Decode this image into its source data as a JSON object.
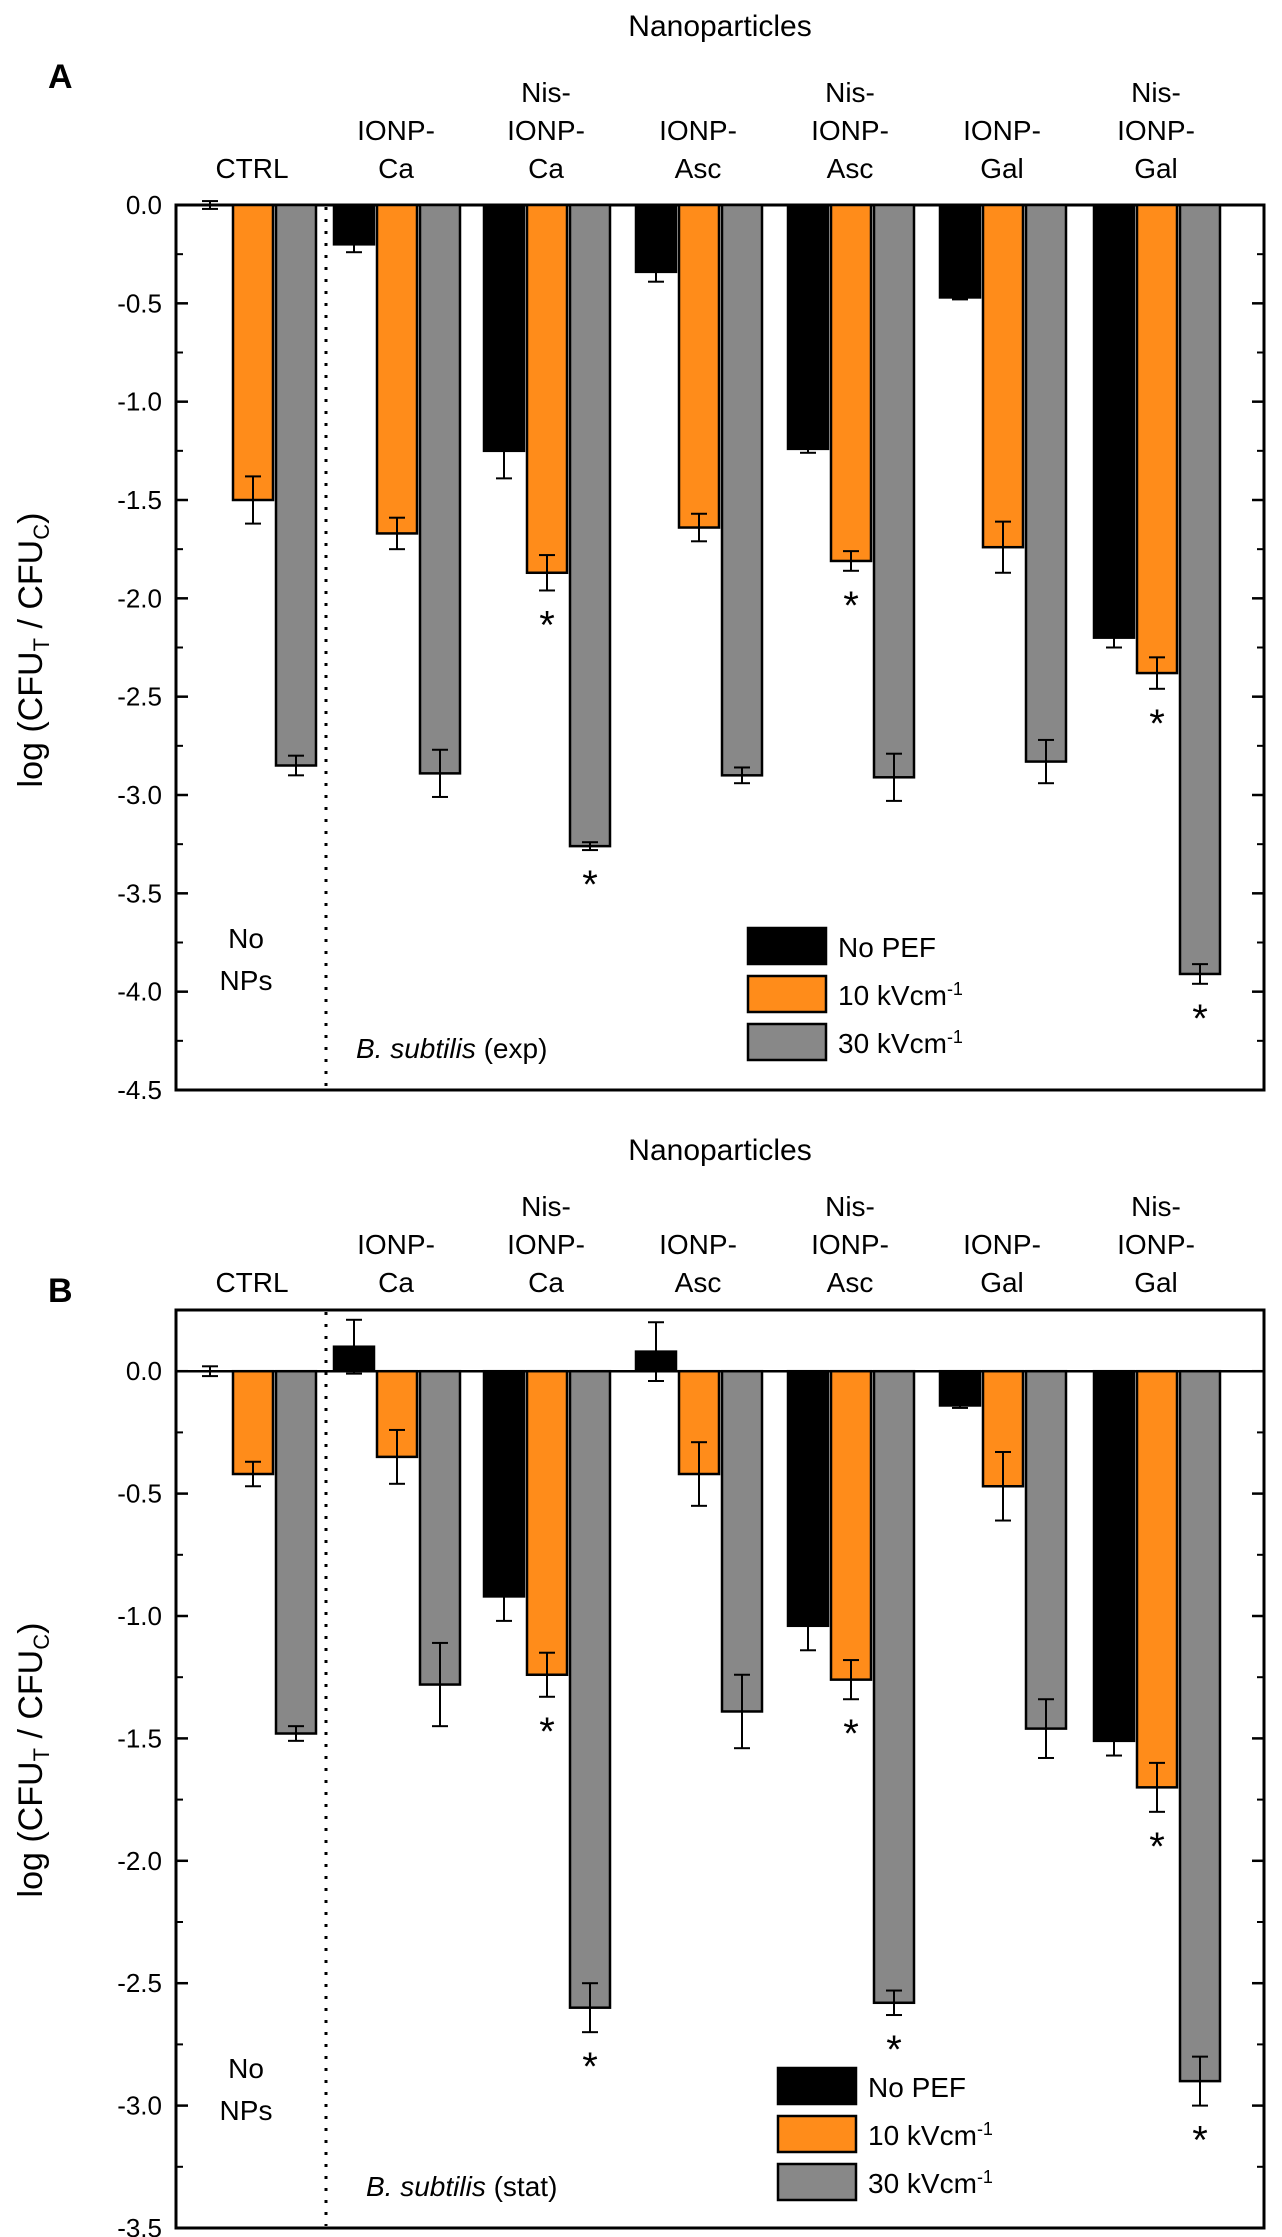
{
  "colors": {
    "no_pef": "#000000",
    "kv10": "#ff8c1a",
    "kv30": "#888888",
    "axis": "#000000"
  },
  "chart_data": [
    {
      "panel": "A",
      "type": "bar",
      "top_title": "Nanoparticles",
      "ylabel_main": "log (CFU",
      "ylabel_sub_t": "T",
      "ylabel_mid": " / CFU",
      "ylabel_sub_c": "C",
      "ylabel_close": ")",
      "ylim": [
        -4.5,
        0.0
      ],
      "ticks": [
        "0.0",
        "-0.5",
        "-1.0",
        "-1.5",
        "-2.0",
        "-2.5",
        "-3.0",
        "-3.5",
        "-4.0",
        "-4.5"
      ],
      "categories": [
        [
          "CTRL"
        ],
        [
          "IONP-",
          "Ca"
        ],
        [
          "Nis-",
          "IONP-",
          "Ca"
        ],
        [
          "IONP-",
          "Asc"
        ],
        [
          "Nis-",
          "IONP-",
          "Asc"
        ],
        [
          "IONP-",
          "Gal"
        ],
        [
          "Nis-",
          "IONP-",
          "Gal"
        ]
      ],
      "series": [
        {
          "name": "No PEF",
          "values": [
            0.0,
            -0.2,
            -1.25,
            -0.34,
            -1.24,
            -0.47,
            -2.2
          ],
          "errors": [
            0.02,
            0.04,
            0.14,
            0.05,
            0.02,
            0.01,
            0.05
          ],
          "stars": [
            false,
            false,
            false,
            false,
            false,
            false,
            false
          ]
        },
        {
          "name": "10 kVcm",
          "values": [
            -1.5,
            -1.67,
            -1.87,
            -1.64,
            -1.81,
            -1.74,
            -2.38
          ],
          "errors": [
            0.12,
            0.08,
            0.09,
            0.07,
            0.05,
            0.13,
            0.08
          ],
          "stars": [
            false,
            false,
            true,
            false,
            true,
            false,
            true
          ]
        },
        {
          "name": "30 kVcm",
          "values": [
            -2.85,
            -2.89,
            -3.26,
            -2.9,
            -2.91,
            -2.83,
            -3.91
          ],
          "errors": [
            0.05,
            0.12,
            0.02,
            0.04,
            0.12,
            0.11,
            0.05
          ],
          "stars": [
            false,
            false,
            true,
            false,
            false,
            false,
            true
          ]
        }
      ],
      "legend": [
        "No PEF",
        "10 kVcm",
        "30 kVcm"
      ],
      "legend_sup": "-1",
      "annotation_ctrl": [
        "No",
        "NPs"
      ],
      "species_italic": "B. subtilis",
      "species_phase": " (exp)",
      "star": "*"
    },
    {
      "panel": "B",
      "type": "bar",
      "top_title": "Nanoparticles",
      "ylabel_main": "log (CFU",
      "ylabel_sub_t": "T",
      "ylabel_mid": " / CFU",
      "ylabel_sub_c": "C",
      "ylabel_close": ")",
      "ylim": [
        -3.5,
        0.25
      ],
      "ticks": [
        "0.0",
        "-0.5",
        "-1.0",
        "-1.5",
        "-2.0",
        "-2.5",
        "-3.0",
        "-3.5"
      ],
      "categories": [
        [
          "CTRL"
        ],
        [
          "IONP-",
          "Ca"
        ],
        [
          "Nis-",
          "IONP-",
          "Ca"
        ],
        [
          "IONP-",
          "Asc"
        ],
        [
          "Nis-",
          "IONP-",
          "Asc"
        ],
        [
          "IONP-",
          "Gal"
        ],
        [
          "Nis-",
          "IONP-",
          "Gal"
        ]
      ],
      "series": [
        {
          "name": "No PEF",
          "values": [
            0.0,
            0.1,
            -0.92,
            0.08,
            -1.04,
            -0.14,
            -1.51
          ],
          "errors": [
            0.02,
            0.11,
            0.1,
            0.12,
            0.1,
            0.01,
            0.06
          ],
          "stars": [
            false,
            false,
            false,
            false,
            false,
            false,
            false
          ]
        },
        {
          "name": "10 kVcm",
          "values": [
            -0.42,
            -0.35,
            -1.24,
            -0.42,
            -1.26,
            -0.47,
            -1.7
          ],
          "errors": [
            0.05,
            0.11,
            0.09,
            0.13,
            0.08,
            0.14,
            0.1
          ],
          "stars": [
            false,
            false,
            true,
            false,
            true,
            false,
            true
          ]
        },
        {
          "name": "30 kVcm",
          "values": [
            -1.48,
            -1.28,
            -2.6,
            -1.39,
            -2.58,
            -1.46,
            -2.9
          ],
          "errors": [
            0.03,
            0.17,
            0.1,
            0.15,
            0.05,
            0.12,
            0.1
          ],
          "stars": [
            false,
            false,
            true,
            false,
            true,
            false,
            true
          ]
        }
      ],
      "legend": [
        "No PEF",
        "10 kVcm",
        "30 kVcm"
      ],
      "legend_sup": "-1",
      "annotation_ctrl": [
        "No",
        "NPs"
      ],
      "species_italic": "B. subtilis",
      "species_phase": " (stat)",
      "star": "*"
    }
  ]
}
